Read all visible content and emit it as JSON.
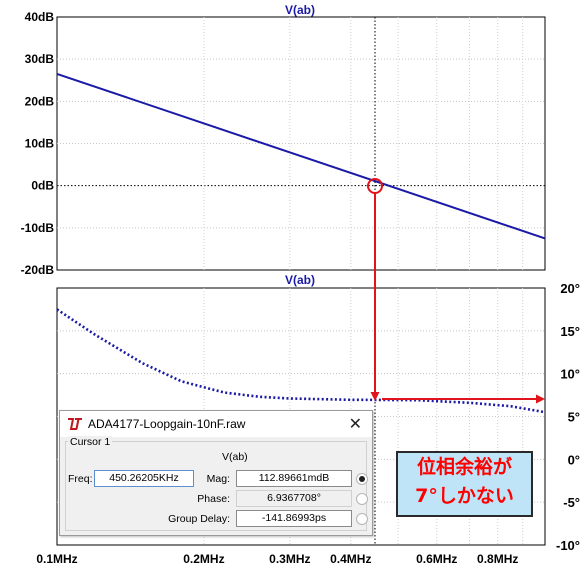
{
  "chart_data": [
    {
      "type": "line",
      "title": "V(ab)",
      "x_scale": "log",
      "x_range_hz": [
        100000,
        1000000
      ],
      "ylim_db": [
        -20,
        40
      ],
      "y_ticks": [
        "40dB",
        "30dB",
        "20dB",
        "10dB",
        "0dB",
        "-10dB",
        "-20dB"
      ],
      "series": [
        {
          "x_hz": [
            100000,
            1000000
          ],
          "y_db": [
            26.5,
            -12.5
          ]
        }
      ]
    },
    {
      "type": "line",
      "title": "V(ab)",
      "x_scale": "log",
      "ylim_deg": [
        -10,
        20
      ],
      "y_ticks": [
        "20°",
        "15°",
        "10°",
        "5°",
        "0°",
        "-5°",
        "-10°"
      ],
      "x_ticks": [
        "0.1MHz",
        "0.2MHz",
        "0.3MHz",
        "0.4MHz",
        "0.6MHz",
        "0.8MHz"
      ],
      "series": [
        {
          "x_hz": [
            100000,
            120000,
            150000,
            180000,
            220000,
            260000,
            300000,
            400000,
            450000,
            550000,
            700000,
            850000,
            1000000
          ],
          "y_deg": [
            17.5,
            14.5,
            11.2,
            9.1,
            7.8,
            7.3,
            7.1,
            6.95,
            6.94,
            6.9,
            6.6,
            6.2,
            5.5
          ]
        }
      ]
    }
  ],
  "dialog": {
    "title": "ADA4177-Loopgain-10nF.raw",
    "close": "✕",
    "cursor_label": "Cursor 1",
    "expression": "V(ab)",
    "freq_label": "Freq:",
    "freq_value": "450.26205KHz",
    "mag_label": "Mag:",
    "mag_value": "112.89661mdB",
    "phase_label": "Phase:",
    "phase_value": "6.9367708°",
    "gd_label": "Group Delay:",
    "gd_value": "-141.86993ps"
  },
  "note": {
    "line1": "位相余裕が",
    "line2": "7°しかない"
  },
  "colors": {
    "trace": "#1a1aa6",
    "annotation": "#e0141a",
    "title": "#1a1aa6"
  }
}
